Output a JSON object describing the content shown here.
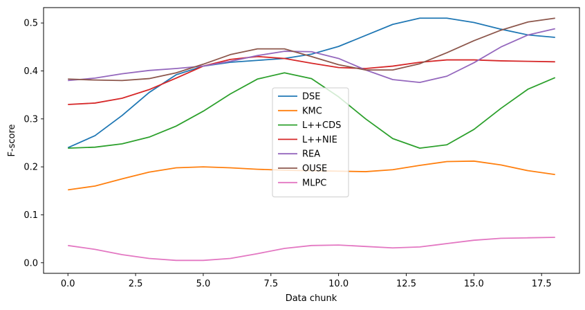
{
  "chart_data": {
    "type": "line",
    "title": "",
    "xlabel": "Data chunk",
    "ylabel": "F-score",
    "xlim": [
      -0.9,
      18.9
    ],
    "ylim": [
      -0.022,
      0.532
    ],
    "xticks": [
      0.0,
      2.5,
      5.0,
      7.5,
      10.0,
      12.5,
      15.0,
      17.5
    ],
    "xtick_labels": [
      "0.0",
      "2.5",
      "5.0",
      "7.5",
      "10.0",
      "12.5",
      "15.0",
      "17.5"
    ],
    "yticks": [
      0.0,
      0.1,
      0.2,
      0.3,
      0.4,
      0.5
    ],
    "ytick_labels": [
      "0.0",
      "0.1",
      "0.2",
      "0.3",
      "0.4",
      "0.5"
    ],
    "grid": false,
    "legend_position": "center",
    "x": [
      0,
      1,
      2,
      3,
      4,
      5,
      6,
      7,
      8,
      9,
      10,
      11,
      12,
      13,
      14,
      15,
      16,
      17,
      18
    ],
    "series": [
      {
        "name": "DSE",
        "color": "#1f77b4",
        "values": [
          0.24,
          0.265,
          0.307,
          0.355,
          0.392,
          0.41,
          0.418,
          0.422,
          0.426,
          0.435,
          0.451,
          0.474,
          0.497,
          0.51,
          0.51,
          0.501,
          0.487,
          0.475,
          0.47
        ]
      },
      {
        "name": "KMC",
        "color": "#ff7f0e",
        "values": [
          0.152,
          0.16,
          0.175,
          0.189,
          0.198,
          0.2,
          0.198,
          0.195,
          0.193,
          0.192,
          0.191,
          0.19,
          0.194,
          0.203,
          0.211,
          0.212,
          0.204,
          0.192,
          0.184
        ]
      },
      {
        "name": "L++CDS",
        "color": "#2ca02c",
        "values": [
          0.239,
          0.241,
          0.248,
          0.262,
          0.285,
          0.316,
          0.352,
          0.383,
          0.396,
          0.384,
          0.346,
          0.3,
          0.259,
          0.239,
          0.246,
          0.278,
          0.322,
          0.362,
          0.386
        ]
      },
      {
        "name": "L++NIE",
        "color": "#d62728",
        "values": [
          0.33,
          0.333,
          0.343,
          0.361,
          0.385,
          0.41,
          0.424,
          0.43,
          0.426,
          0.416,
          0.407,
          0.405,
          0.41,
          0.418,
          0.423,
          0.423,
          0.421,
          0.42,
          0.419
        ]
      },
      {
        "name": "REA",
        "color": "#9467bd",
        "values": [
          0.38,
          0.385,
          0.394,
          0.401,
          0.405,
          0.41,
          0.42,
          0.432,
          0.441,
          0.44,
          0.426,
          0.402,
          0.382,
          0.376,
          0.389,
          0.417,
          0.45,
          0.475,
          0.488
        ]
      },
      {
        "name": "OUSE",
        "color": "#8c564b",
        "values": [
          0.383,
          0.381,
          0.38,
          0.384,
          0.396,
          0.414,
          0.434,
          0.446,
          0.446,
          0.43,
          0.413,
          0.402,
          0.402,
          0.415,
          0.438,
          0.463,
          0.485,
          0.502,
          0.51
        ]
      },
      {
        "name": "MLPC",
        "color": "#e377c2",
        "values": [
          0.036,
          0.028,
          0.017,
          0.009,
          0.005,
          0.005,
          0.009,
          0.019,
          0.03,
          0.036,
          0.037,
          0.034,
          0.031,
          0.033,
          0.04,
          0.047,
          0.051,
          0.052,
          0.053
        ]
      }
    ]
  }
}
